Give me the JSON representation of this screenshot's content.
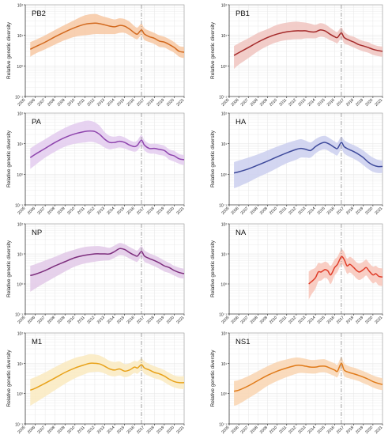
{
  "figure": {
    "ylabel": "Relative genetic diversity",
    "x_tick_labels": [
      "2005",
      "2006",
      "2007",
      "2008",
      "2009",
      "2010",
      "2011",
      "2012",
      "2013",
      "2014",
      "2015",
      "2016",
      "2017",
      "2018",
      "2019",
      "2020",
      "2021"
    ],
    "y_tick_labels": [
      "10²",
      "10¹",
      "10⁰",
      "10⁻¹"
    ]
  },
  "chart_data": [
    {
      "type": "area",
      "title": "PB2",
      "color": "#d2691e",
      "band_color": "#f7c8a3",
      "ylabel": "Relative genetic diversity",
      "yscale": "log",
      "ylim": [
        0.1,
        100
      ],
      "xlim": [
        2005,
        2021
      ],
      "vline_x": 2016.7,
      "grid": true,
      "x": [
        2005.5,
        2006,
        2007,
        2008,
        2009,
        2010,
        2011,
        2012,
        2012.5,
        2013,
        2013.5,
        2014,
        2014.5,
        2015,
        2015.5,
        2016,
        2016.3,
        2016.7,
        2017,
        2017.5,
        2018,
        2018.5,
        2019,
        2019.5,
        2020,
        2020.5,
        2021
      ],
      "y": [
        3.5,
        4.2,
        6,
        9,
        13,
        18,
        23,
        25,
        24,
        22,
        20,
        19,
        21,
        20,
        16,
        12,
        11,
        15,
        11,
        9,
        8,
        6.5,
        6,
        5,
        4,
        3,
        2.8
      ],
      "lower": [
        2,
        2.5,
        3.5,
        5,
        7,
        9,
        10,
        11,
        11,
        11,
        11,
        11,
        12,
        12,
        10,
        8,
        7.5,
        10,
        7,
        6,
        5.2,
        4.2,
        4,
        3.3,
        2.7,
        2,
        1.8
      ],
      "upper": [
        6,
        7,
        10,
        15,
        22,
        32,
        45,
        50,
        45,
        40,
        36,
        33,
        36,
        34,
        28,
        20,
        18,
        24,
        17,
        14,
        12,
        10,
        9,
        7.5,
        6,
        4.5,
        4.2
      ]
    },
    {
      "type": "area",
      "title": "PB1",
      "color": "#a52a2a",
      "band_color": "#f0c4bf",
      "ylabel": "Relative genetic diversity",
      "yscale": "log",
      "ylim": [
        0.1,
        100
      ],
      "xlim": [
        2005,
        2021
      ],
      "vline_x": 2016.7,
      "grid": true,
      "x": [
        2005.5,
        2006,
        2007,
        2008,
        2009,
        2010,
        2011,
        2012,
        2012.5,
        2013,
        2013.5,
        2014,
        2014.5,
        2015,
        2015.5,
        2016,
        2016.3,
        2016.7,
        2017,
        2017.5,
        2018,
        2018.5,
        2019,
        2019.5,
        2020,
        2020.5,
        2021
      ],
      "y": [
        2.2,
        2.7,
        4,
        6,
        8.5,
        11,
        13,
        14,
        14,
        14,
        13,
        13,
        15,
        14,
        11,
        9,
        8.5,
        12,
        8.5,
        7,
        6,
        5,
        4.5,
        4,
        3.5,
        3.2,
        3
      ],
      "lower": [
        0.8,
        1.1,
        1.8,
        3,
        4.5,
        6,
        7,
        7.5,
        7.5,
        8,
        8,
        8,
        9,
        8.5,
        7,
        6,
        5.5,
        8,
        5.5,
        4.7,
        4,
        3.4,
        3,
        2.7,
        2.3,
        2.1,
        2
      ],
      "upper": [
        4.5,
        5.5,
        8,
        12,
        16,
        22,
        26,
        28,
        27,
        26,
        24,
        22,
        25,
        23,
        18,
        14,
        13,
        18,
        13,
        10,
        9,
        7.5,
        6.5,
        6,
        5,
        4.5,
        4.3
      ]
    },
    {
      "type": "area",
      "title": "PA",
      "color": "#8e44ad",
      "band_color": "#e3cbee",
      "ylabel": "Relative genetic diversity",
      "yscale": "log",
      "ylim": [
        0.1,
        100
      ],
      "xlim": [
        2005,
        2021
      ],
      "vline_x": 2016.7,
      "grid": true,
      "x": [
        2005.5,
        2006,
        2007,
        2008,
        2009,
        2010,
        2011,
        2011.5,
        2012,
        2012.5,
        2013,
        2013.5,
        2014,
        2014.5,
        2015,
        2015.5,
        2016,
        2016.3,
        2016.7,
        2017,
        2017.5,
        2018,
        2018.5,
        2019,
        2019.5,
        2020,
        2020.5,
        2021
      ],
      "y": [
        3.5,
        4.5,
        7,
        11,
        16,
        21,
        25,
        26,
        25,
        20,
        14,
        11,
        11,
        12,
        11,
        9,
        8,
        9,
        13,
        9,
        7,
        7,
        6.5,
        6,
        4.5,
        4,
        3.2,
        3
      ],
      "lower": [
        1.5,
        2,
        3.5,
        5.5,
        8,
        10,
        11,
        11.5,
        11,
        9.5,
        7.5,
        6.5,
        7,
        7.5,
        7,
        6,
        5.5,
        6,
        8.5,
        6,
        4.8,
        4.7,
        4.3,
        4,
        3,
        2.6,
        2.2,
        2
      ],
      "upper": [
        7,
        9,
        14,
        22,
        33,
        45,
        55,
        56,
        50,
        38,
        24,
        18,
        17,
        18,
        16,
        13,
        11.5,
        13,
        19,
        13,
        10,
        10,
        9.5,
        8.5,
        6.5,
        5.8,
        4.6,
        4.3
      ]
    },
    {
      "type": "area",
      "title": "HA",
      "color": "#3e4a9b",
      "band_color": "#cbcfee",
      "ylabel": "Relative genetic diversity",
      "yscale": "log",
      "ylim": [
        0.1,
        100
      ],
      "xlim": [
        2005,
        2021
      ],
      "vline_x": 2016.7,
      "grid": true,
      "x": [
        2005.5,
        2006,
        2007,
        2008,
        2009,
        2010,
        2011,
        2012,
        2012.5,
        2013,
        2013.5,
        2014,
        2014.5,
        2015,
        2015.5,
        2016,
        2016.3,
        2016.7,
        2017,
        2017.5,
        2018,
        2018.5,
        2019,
        2019.5,
        2020,
        2020.5,
        2021
      ],
      "y": [
        1.1,
        1.2,
        1.5,
        2,
        2.7,
        3.7,
        5,
        6.5,
        7,
        6.5,
        6,
        8,
        10,
        11,
        9.5,
        7.5,
        7,
        11,
        8,
        6.5,
        5.5,
        4.5,
        3.5,
        2.5,
        2,
        1.8,
        1.8
      ],
      "lower": [
        0.35,
        0.4,
        0.55,
        0.8,
        1.1,
        1.6,
        2.3,
        3,
        3.5,
        3.5,
        3.5,
        4.8,
        6,
        6.5,
        5.5,
        4.5,
        4.2,
        6.5,
        4.8,
        3.8,
        3.2,
        2.6,
        2,
        1.5,
        1.2,
        1.1,
        1.1
      ],
      "upper": [
        2.5,
        2.8,
        3.5,
        4.5,
        6,
        8,
        10.5,
        13,
        14,
        12.5,
        11,
        14,
        17,
        18,
        15,
        12,
        11,
        17,
        13,
        10.5,
        9,
        7.5,
        6,
        4.5,
        3.5,
        3,
        2.8
      ]
    },
    {
      "type": "area",
      "title": "NP",
      "color": "#7d2e7d",
      "band_color": "#e2c9e8",
      "ylabel": "Relative genetic diversity",
      "yscale": "log",
      "ylim": [
        0.1,
        100
      ],
      "xlim": [
        2005,
        2021
      ],
      "vline_x": 2016.7,
      "grid": true,
      "x": [
        2005.5,
        2006,
        2007,
        2008,
        2009,
        2010,
        2011,
        2012,
        2012.5,
        2013,
        2013.5,
        2014,
        2014.5,
        2015,
        2015.5,
        2016,
        2016.3,
        2016.7,
        2017,
        2017.5,
        2018,
        2018.5,
        2019,
        2019.5,
        2020,
        2020.5,
        2021
      ],
      "y": [
        1.9,
        2.1,
        2.8,
        4,
        5.5,
        7.5,
        9,
        10,
        10,
        10,
        10,
        12,
        15,
        14,
        11,
        9,
        8.5,
        12,
        8.5,
        7,
        6,
        5,
        4,
        3.5,
        2.8,
        2.4,
        2.2
      ],
      "lower": [
        0.55,
        0.7,
        1.1,
        1.7,
        2.6,
        3.8,
        4.8,
        5.5,
        5.8,
        6,
        6.2,
        7.5,
        9,
        8.5,
        7,
        5.8,
        5.5,
        8,
        5.5,
        4.6,
        3.9,
        3.2,
        2.6,
        2.3,
        1.9,
        1.6,
        1.5
      ],
      "upper": [
        4,
        4.5,
        6,
        8,
        11,
        14,
        17,
        18,
        18,
        17,
        16,
        19,
        23,
        21,
        17,
        14,
        13,
        18,
        13,
        10.5,
        9,
        7.5,
        6,
        5,
        4,
        3.5,
        3.2
      ]
    },
    {
      "type": "area",
      "title": "NA",
      "color": "#e03c28",
      "band_color": "#f8c6ba",
      "ylabel": "Relative genetic diversity",
      "yscale": "log",
      "ylim": [
        0.1,
        100
      ],
      "xlim": [
        2005,
        2021
      ],
      "vline_x": 2016.7,
      "grid": true,
      "x": [
        2013.3,
        2013.6,
        2014,
        2014.3,
        2014.6,
        2015,
        2015.3,
        2015.6,
        2016,
        2016.3,
        2016.7,
        2017,
        2017.3,
        2017.6,
        2018,
        2018.3,
        2018.6,
        2019,
        2019.3,
        2019.6,
        2020,
        2020.3,
        2020.6,
        2021
      ],
      "y": [
        1,
        1.2,
        1.6,
        2.5,
        2.5,
        3,
        2.7,
        2,
        3.5,
        4.5,
        8,
        6.5,
        4,
        4.5,
        3.5,
        2.8,
        2.5,
        3,
        3.5,
        2.7,
        2,
        2.2,
        1.8,
        1.7
      ],
      "lower": [
        0.3,
        0.45,
        0.7,
        1.2,
        1.3,
        1.6,
        1.4,
        1,
        1.9,
        2.5,
        4.5,
        3.6,
        2.2,
        2.4,
        1.9,
        1.5,
        1.35,
        1.6,
        1.9,
        1.45,
        1.05,
        1.15,
        0.9,
        0.85
      ],
      "upper": [
        2.6,
        3,
        3.5,
        5,
        4.8,
        5.5,
        5,
        4,
        6.5,
        8,
        14,
        11.5,
        7,
        8,
        6.5,
        5.2,
        4.8,
        5.5,
        6.5,
        5,
        3.8,
        4,
        3.4,
        3.3
      ]
    },
    {
      "type": "area",
      "title": "M1",
      "color": "#e8a21a",
      "band_color": "#faeac0",
      "ylabel": "Relative genetic diversity",
      "yscale": "log",
      "ylim": [
        0.1,
        100
      ],
      "xlim": [
        2005,
        2021
      ],
      "vline_x": 2016.7,
      "grid": true,
      "x": [
        2005.5,
        2006,
        2007,
        2008,
        2009,
        2010,
        2011,
        2011.5,
        2012,
        2012.5,
        2013,
        2013.5,
        2014,
        2014.5,
        2015,
        2015.5,
        2016,
        2016.3,
        2016.7,
        2017,
        2017.5,
        2018,
        2018.5,
        2019,
        2019.5,
        2020,
        2020.5,
        2021
      ],
      "y": [
        1.3,
        1.5,
        2.2,
        3.3,
        5,
        7,
        9,
        10,
        10,
        9.5,
        8,
        6.5,
        6,
        6.5,
        5.5,
        6,
        7.5,
        7,
        9,
        7,
        6,
        5,
        4.5,
        3.8,
        3,
        2.5,
        2.3,
        2.3
      ],
      "lower": [
        0.4,
        0.5,
        0.8,
        1.3,
        2.1,
        3.2,
        4.4,
        5,
        5.2,
        5.2,
        4.6,
        3.9,
        3.7,
        4,
        3.5,
        3.8,
        4.8,
        4.5,
        5.8,
        4.5,
        3.8,
        3.2,
        2.9,
        2.4,
        1.9,
        1.6,
        1.45,
        1.4
      ],
      "upper": [
        3,
        3.5,
        5,
        7.5,
        11,
        15,
        18,
        20,
        19.5,
        18,
        15,
        12,
        11,
        11.5,
        9.5,
        10,
        12,
        11.5,
        14.5,
        11.5,
        9.5,
        8,
        7,
        6,
        4.8,
        4,
        3.7,
        3.8
      ]
    },
    {
      "type": "area",
      "title": "NS1",
      "color": "#e07b1a",
      "band_color": "#f9d5b2",
      "ylabel": "Relative genetic diversity",
      "yscale": "log",
      "ylim": [
        0.1,
        100
      ],
      "xlim": [
        2005,
        2021
      ],
      "vline_x": 2016.7,
      "grid": true,
      "x": [
        2005.5,
        2006,
        2007,
        2008,
        2009,
        2010,
        2011,
        2012,
        2012.5,
        2013,
        2013.5,
        2014,
        2014.5,
        2015,
        2015.5,
        2016,
        2016.3,
        2016.7,
        2017,
        2017.5,
        2018,
        2018.5,
        2019,
        2019.5,
        2020,
        2020.5,
        2021
      ],
      "y": [
        1.2,
        1.3,
        1.8,
        2.7,
        4,
        5.5,
        7,
        8.5,
        8.5,
        8,
        7.5,
        7.5,
        8,
        8,
        7,
        6,
        5.5,
        10,
        6,
        5,
        4.5,
        4,
        3.5,
        3,
        2.5,
        2.2,
        2
      ],
      "lower": [
        0.4,
        0.45,
        0.7,
        1.1,
        1.8,
        2.6,
        3.5,
        4.5,
        4.8,
        4.7,
        4.6,
        4.6,
        5,
        5,
        4.4,
        3.8,
        3.5,
        6.2,
        3.8,
        3.2,
        2.9,
        2.6,
        2.2,
        1.9,
        1.6,
        1.4,
        1.3
      ],
      "upper": [
        2.6,
        2.8,
        3.8,
        5.5,
        8,
        11,
        13.5,
        15.5,
        15,
        14,
        13,
        13,
        13.5,
        13.5,
        11.5,
        10,
        9,
        16,
        10,
        8,
        7.2,
        6.3,
        5.5,
        4.7,
        4,
        3.5,
        3.2
      ]
    }
  ]
}
